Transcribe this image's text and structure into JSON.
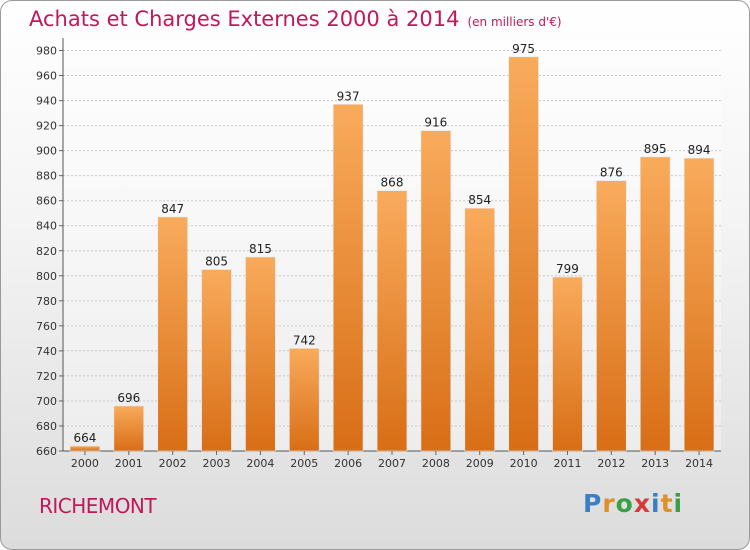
{
  "header": {
    "title": "Achats et Charges Externes 2000 à 2014",
    "unit": "(en milliers d'€)"
  },
  "footer": {
    "place": "RICHEMONT",
    "logo": "Proxiti"
  },
  "colors": {
    "title": "#c2185b",
    "bar_top": "#f9ab5c",
    "bar_bottom": "#d86e16"
  },
  "chart_data": {
    "type": "bar",
    "categories": [
      "2000",
      "2001",
      "2002",
      "2003",
      "2004",
      "2005",
      "2006",
      "2007",
      "2008",
      "2009",
      "2010",
      "2011",
      "2012",
      "2013",
      "2014"
    ],
    "values": [
      664,
      696,
      847,
      805,
      815,
      742,
      937,
      868,
      916,
      854,
      975,
      799,
      876,
      895,
      894
    ],
    "title": "Achats et Charges Externes 2000 à 2014",
    "ylim": [
      660,
      990
    ],
    "yticks": [
      660,
      680,
      700,
      720,
      740,
      760,
      780,
      800,
      820,
      840,
      860,
      880,
      900,
      920,
      940,
      960,
      980
    ],
    "grid": "horizontal",
    "data_labels": true
  }
}
